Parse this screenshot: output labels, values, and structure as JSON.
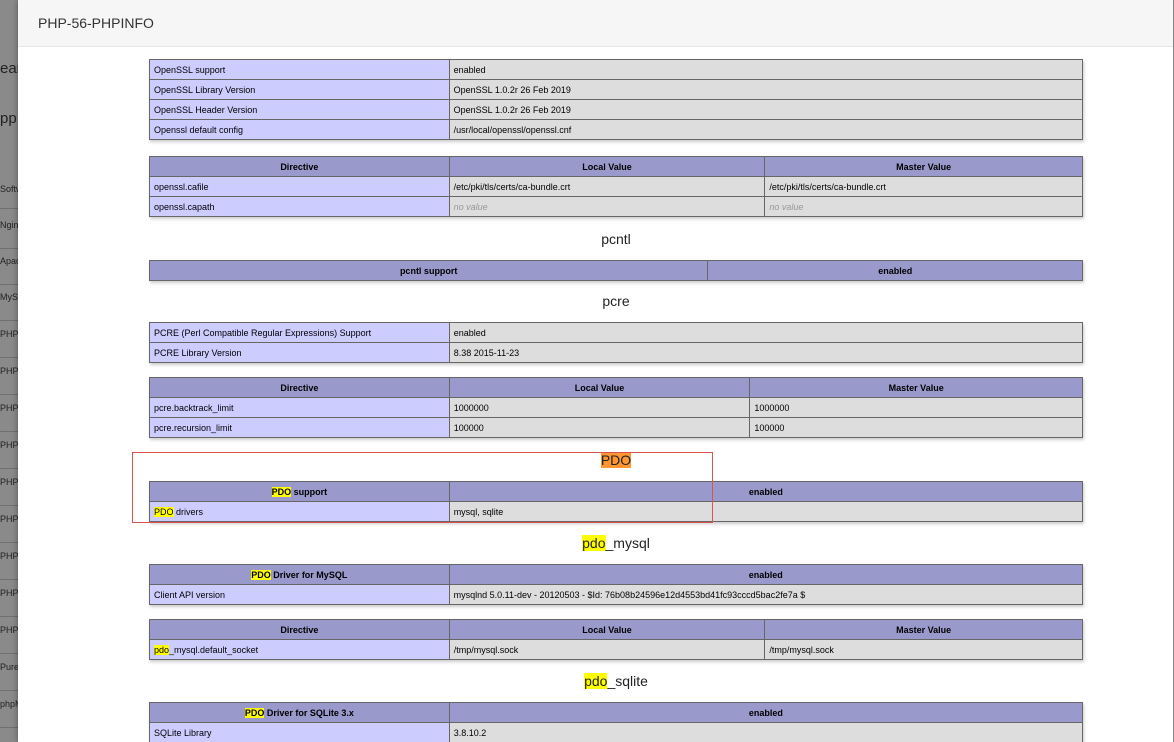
{
  "background_app": {
    "items": [
      "Softw",
      "Ngin",
      "Apac",
      "MySt",
      "PHP",
      "PHP",
      "PHP",
      "PHP",
      "PHP",
      "PHP",
      "PHP",
      "PHP",
      "PHP",
      "Pure",
      "phpM"
    ],
    "big_texts": [
      "ear",
      "pp"
    ]
  },
  "modal": {
    "title": "PHP-56-PHPINFO"
  },
  "openssl_info": [
    [
      "OpenSSL support",
      "enabled"
    ],
    [
      "OpenSSL Library Version",
      "OpenSSL 1.0.2r 26 Feb 2019"
    ],
    [
      "OpenSSL Header Version",
      "OpenSSL 1.0.2r 26 Feb 2019"
    ],
    [
      "Openssl default config",
      "/usr/local/openssl/openssl.cnf"
    ]
  ],
  "directive_header": {
    "directive": "Directive",
    "local": "Local Value",
    "master": "Master Value"
  },
  "openssl_directives": [
    {
      "name": "openssl.cafile",
      "local": "/etc/pki/tls/certs/ca-bundle.crt",
      "master": "/etc/pki/tls/certs/ca-bundle.crt"
    },
    {
      "name": "openssl.capath",
      "local": "no value",
      "master": "no value"
    }
  ],
  "pcntl": {
    "title": "pcntl",
    "support_label": "pcntl support",
    "support_value": "enabled"
  },
  "pcre": {
    "title": "pcre",
    "info": [
      [
        "PCRE (Perl Compatible Regular Expressions) Support",
        "enabled"
      ],
      [
        "PCRE Library Version",
        "8.38 2015-11-23"
      ]
    ],
    "directives": [
      {
        "name": "pcre.backtrack_limit",
        "local": "1000000",
        "master": "1000000"
      },
      {
        "name": "pcre.recursion_limit",
        "local": "100000",
        "master": "100000"
      }
    ]
  },
  "pdo": {
    "title": "PDO",
    "support_hl": "PDO",
    "support_rest": " support",
    "support_value": "enabled",
    "drivers_hl": "PDO",
    "drivers_rest": " drivers",
    "drivers_value": "mysql, sqlite"
  },
  "pdo_mysql": {
    "title_hl": "pdo",
    "title_rest": "_mysql",
    "driver_hl": "PDO",
    "driver_rest": " Driver for MySQL",
    "driver_value": "enabled",
    "client_label": "Client API version",
    "client_value": "mysqlnd 5.0.11-dev - 20120503 - $Id: 76b08b24596e12d4553bd41fc93cccd5bac2fe7a $",
    "directive": {
      "name_hl": "pdo",
      "name_rest": "_mysql.default_socket",
      "local": "/tmp/mysql.sock",
      "master": "/tmp/mysql.sock"
    }
  },
  "pdo_sqlite": {
    "title_hl": "pdo",
    "title_rest": "_sqlite",
    "driver_hl": "PDO",
    "driver_rest": " Driver for SQLite 3.x",
    "driver_value": "enabled",
    "lib_label": "SQLite Library",
    "lib_value": "3.8.10.2"
  },
  "colors": {
    "header_bg": "#9999cc",
    "key_bg": "#ccccff",
    "value_bg": "#dddddd",
    "search_highlight": "#ffff00",
    "current_match": "#ff9632",
    "box_border": "#d9534f"
  }
}
